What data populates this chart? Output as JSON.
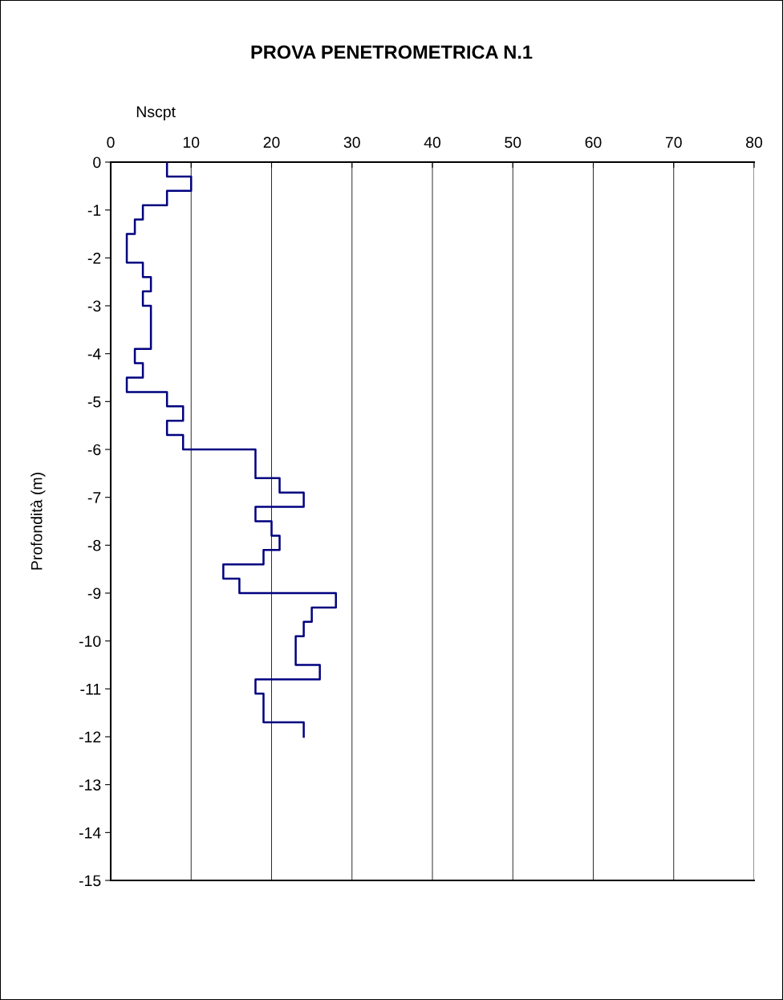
{
  "chart_data": {
    "type": "line",
    "title": "PROVA PENETROMETRICA N.1",
    "xlabel": "Nscpt",
    "ylabel": "Profondità (m)",
    "series": [
      {
        "color": "#000080",
        "x": [
          7,
          7,
          10,
          10,
          7,
          7,
          4,
          4,
          3,
          3,
          2,
          2,
          4,
          4,
          5,
          5,
          4,
          4,
          5,
          5,
          3,
          3,
          4,
          4,
          2,
          2,
          7,
          7,
          9,
          9,
          7,
          7,
          9,
          9,
          18,
          18,
          21,
          21,
          24,
          24,
          18,
          18,
          20,
          20,
          21,
          21,
          19,
          19,
          14,
          14,
          16,
          16,
          28,
          28,
          25,
          25,
          24,
          24,
          23,
          23,
          26,
          26,
          18,
          18,
          19,
          19,
          24,
          24
        ],
        "values": [
          0,
          -0.3,
          -0.3,
          -0.6,
          -0.6,
          -0.9,
          -0.9,
          -1.2,
          -1.2,
          -1.5,
          -1.5,
          -2.1,
          -2.1,
          -2.4,
          -2.4,
          -2.7,
          -2.7,
          -3.0,
          -3.0,
          -3.9,
          -3.9,
          -4.2,
          -4.2,
          -4.5,
          -4.5,
          -4.8,
          -4.8,
          -5.1,
          -5.1,
          -5.4,
          -5.4,
          -5.7,
          -5.7,
          -6.0,
          -6.0,
          -6.6,
          -6.6,
          -6.9,
          -6.9,
          -7.2,
          -7.2,
          -7.5,
          -7.5,
          -7.8,
          -7.8,
          -8.1,
          -8.1,
          -8.4,
          -8.4,
          -8.7,
          -8.7,
          -9.0,
          -9.0,
          -9.3,
          -9.3,
          -9.6,
          -9.6,
          -9.9,
          -9.9,
          -10.5,
          -10.5,
          -10.8,
          -10.8,
          -11.1,
          -11.1,
          -11.7,
          -11.7,
          -12.0
        ]
      }
    ],
    "xlim": [
      0,
      80
    ],
    "xticks": [
      0,
      10,
      20,
      30,
      40,
      50,
      60,
      70,
      80
    ],
    "ylim": [
      -15,
      0
    ],
    "yticks": [
      0,
      -1,
      -2,
      -3,
      -4,
      -5,
      -6,
      -7,
      -8,
      -9,
      -10,
      -11,
      -12,
      -13,
      -14,
      -15
    ],
    "grid": "x",
    "line_style": "solid",
    "marker": "none"
  }
}
